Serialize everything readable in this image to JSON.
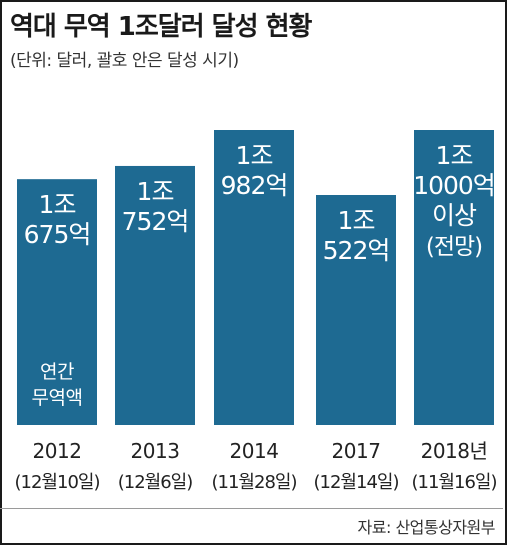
{
  "title": "역대 무역 1조달러 달성 현황",
  "subtitle": "(단위: 달러, 괄호 안은 달성 시기)",
  "source": "자료: 산업통상자원부",
  "colors": {
    "bar": "#1e6a92",
    "bar_text": "#ffffff",
    "label_text": "#222222"
  },
  "chart_data": {
    "type": "bar",
    "title": "역대 무역 1조달러 달성 현황",
    "xlabel": "",
    "ylabel": "",
    "unit": "달러",
    "ylim": [
      0,
      1000
    ],
    "categories": [
      "2012",
      "2013",
      "2014",
      "2017",
      "2018년"
    ],
    "dates": [
      "(12월10일)",
      "(12월6일)",
      "(11월28일)",
      "(12월14일)",
      "(11월16일)"
    ],
    "values": [
      1675,
      1752,
      1982,
      1522,
      2000
    ],
    "value_labels": [
      [
        "1조",
        "675억"
      ],
      [
        "1조",
        "752억"
      ],
      [
        "1조",
        "982억"
      ],
      [
        "1조",
        "522억"
      ],
      [
        "1조",
        "1000억",
        "이상",
        "(전망)"
      ]
    ],
    "bar_notes": [
      [
        "연간",
        "무역액"
      ],
      [],
      [],
      [],
      []
    ]
  }
}
